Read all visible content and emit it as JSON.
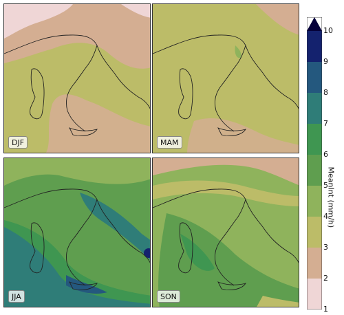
{
  "panels": [
    {
      "id": "djf",
      "label": "DJF"
    },
    {
      "id": "mam",
      "label": "MAM"
    },
    {
      "id": "jja",
      "label": "JJA"
    },
    {
      "id": "son",
      "label": "SON"
    }
  ],
  "colorbar": {
    "label": "MeanInt (mm/h)",
    "ticks": [
      "1",
      "2",
      "3",
      "4",
      "5",
      "6",
      "7",
      "8",
      "9",
      "10"
    ],
    "range": [
      1,
      10
    ],
    "extend": "max",
    "colors": [
      "#efd6d6",
      "#d4ae92",
      "#bcbc68",
      "#8fb35c",
      "#5f9e4f",
      "#3f9651",
      "#2f7d78",
      "#24587e",
      "#14226e",
      "#05003a"
    ]
  }
}
